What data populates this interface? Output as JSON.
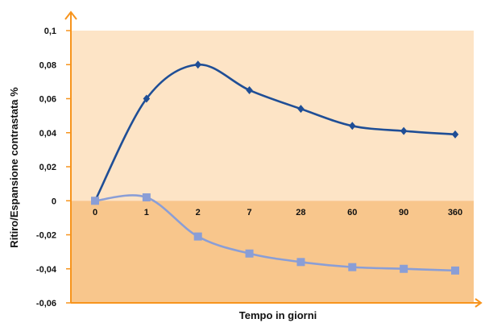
{
  "chart_data": {
    "type": "line",
    "title": "",
    "xlabel": "Tempo in giorni",
    "ylabel": "Ritiro/Espansione contrastata %",
    "categories": [
      "0",
      "1",
      "2",
      "7",
      "28",
      "60",
      "90",
      "360"
    ],
    "ylim": [
      -0.06,
      0.1
    ],
    "yticks": [
      "0,1",
      "0,08",
      "0,06",
      "0,04",
      "0,02",
      "0",
      "-0,02",
      "-0,04",
      "-0,06"
    ],
    "ytick_values": [
      0.1,
      0.08,
      0.06,
      0.04,
      0.02,
      0,
      -0.02,
      -0.04,
      -0.06
    ],
    "grid": false,
    "legend": "none",
    "series": [
      {
        "values": [
          0,
          0.06,
          0.08,
          0.065,
          0.054,
          0.044,
          0.041,
          0.039
        ],
        "color": "#1f4e96",
        "marker": "diamond"
      },
      {
        "values": [
          0,
          0.002,
          -0.021,
          -0.031,
          -0.036,
          -0.039,
          -0.04,
          -0.041
        ],
        "color": "#8a9ed6",
        "marker": "square"
      }
    ],
    "colors": {
      "positive_band": "#fde4c6",
      "negative_band": "#f8c68c",
      "axis": "#f7941d"
    }
  }
}
